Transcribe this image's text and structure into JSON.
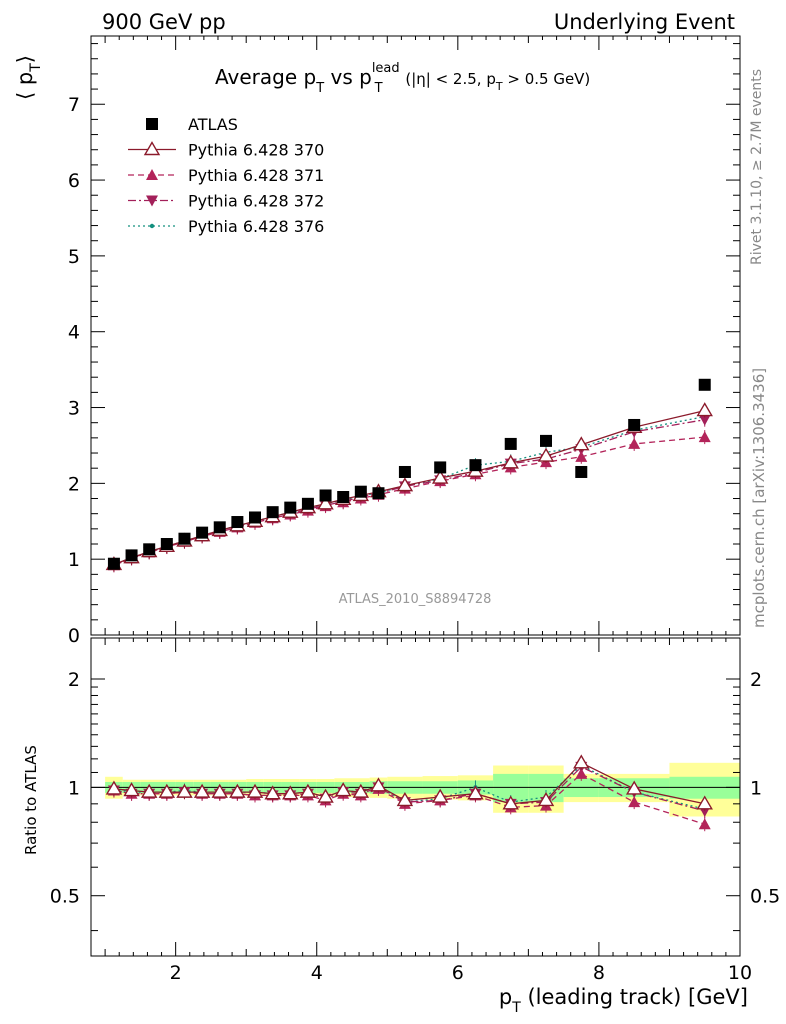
{
  "header": {
    "left": "900 GeV pp",
    "right": "Underlying Event"
  },
  "side_labels": {
    "top": "Rivet 3.1.10, ≥ 2.7M events",
    "bottom": "mcplots.cern.ch [arXiv:1306.3436]"
  },
  "chart_data": [
    {
      "type": "scatter",
      "panel": "main",
      "title_main": "Average p",
      "title_sub": "T",
      "title_mid": " vs p",
      "title_sup": "lead",
      "title_sub2": "T",
      "title_cuts": " (|η| < 2.5, p",
      "title_cuts_sub": "T",
      "title_cuts_end": " > 0.5 GeV)",
      "ylabel_left": "⟨ p",
      "ylabel_sub": "T",
      "ylabel_right": "⟩",
      "analysis_tag": "ATLAS_2010_S8894728",
      "xlim": [
        0.8,
        10.0
      ],
      "ylim": [
        0,
        7.9
      ],
      "yticks": [
        0,
        1,
        2,
        3,
        4,
        5,
        6,
        7
      ],
      "x": [
        1.125,
        1.375,
        1.625,
        1.875,
        2.125,
        2.375,
        2.625,
        2.875,
        3.125,
        3.375,
        3.625,
        3.875,
        4.125,
        4.375,
        4.625,
        4.875,
        5.25,
        5.75,
        6.25,
        6.75,
        7.25,
        7.75,
        8.5,
        9.5
      ],
      "series": [
        {
          "name": "ATLAS",
          "color": "#000000",
          "marker": "square",
          "line": "none",
          "values": [
            0.94,
            1.05,
            1.13,
            1.2,
            1.27,
            1.35,
            1.42,
            1.49,
            1.55,
            1.62,
            1.68,
            1.73,
            1.84,
            1.82,
            1.89,
            1.87,
            2.15,
            2.21,
            2.24,
            2.52,
            2.56,
            2.15,
            2.77,
            3.3
          ]
        },
        {
          "name": "Pythia 6.428 370",
          "color": "#8b1a2b",
          "marker": "triangle-open",
          "line": "solid",
          "values": [
            0.93,
            1.02,
            1.1,
            1.17,
            1.24,
            1.31,
            1.38,
            1.44,
            1.5,
            1.56,
            1.62,
            1.68,
            1.73,
            1.79,
            1.84,
            1.89,
            1.97,
            2.07,
            2.16,
            2.27,
            2.36,
            2.51,
            2.74,
            2.96
          ]
        },
        {
          "name": "Pythia 6.428 371",
          "color": "#b3245a",
          "marker": "triangle-up",
          "line": "dashed",
          "values": [
            0.92,
            1.01,
            1.09,
            1.16,
            1.23,
            1.3,
            1.36,
            1.42,
            1.48,
            1.54,
            1.59,
            1.64,
            1.7,
            1.75,
            1.8,
            1.85,
            1.93,
            2.03,
            2.12,
            2.21,
            2.28,
            2.35,
            2.52,
            2.61
          ]
        },
        {
          "name": "Pythia 6.428 372",
          "color": "#a3205a",
          "marker": "triangle-down",
          "line": "dashdot",
          "values": [
            0.92,
            1.01,
            1.09,
            1.16,
            1.23,
            1.3,
            1.36,
            1.42,
            1.48,
            1.54,
            1.6,
            1.66,
            1.71,
            1.76,
            1.82,
            1.87,
            1.96,
            2.04,
            2.14,
            2.26,
            2.32,
            2.45,
            2.68,
            2.84
          ]
        },
        {
          "name": "Pythia 6.428 376",
          "color": "#14907f",
          "marker": "dot",
          "line": "dotted",
          "values": [
            0.93,
            1.02,
            1.1,
            1.17,
            1.24,
            1.31,
            1.38,
            1.44,
            1.5,
            1.56,
            1.62,
            1.67,
            1.73,
            1.78,
            1.83,
            1.88,
            1.96,
            2.06,
            2.24,
            2.29,
            2.41,
            2.48,
            2.7,
            2.88
          ]
        }
      ],
      "legend_position": "top-left"
    },
    {
      "type": "scatter",
      "panel": "ratio",
      "ylabel": "Ratio to ATLAS",
      "xlabel": "p",
      "xlabel_sub": "T",
      "xlabel_rest": " (leading track) [GeV]",
      "xlim": [
        0.8,
        10.0
      ],
      "ylim": [
        0.34,
        2.6
      ],
      "ytick_labels": [
        "0.5",
        "1",
        "2"
      ],
      "ytick_values": [
        0.5,
        1,
        2
      ],
      "xtick_labels": [
        "2",
        "4",
        "6",
        "8",
        "10"
      ],
      "xtick_values": [
        2,
        4,
        6,
        8,
        10
      ],
      "bins": [
        [
          1.0,
          1.25
        ],
        [
          1.25,
          1.5
        ],
        [
          1.5,
          1.75
        ],
        [
          1.75,
          2.0
        ],
        [
          2.0,
          2.25
        ],
        [
          2.25,
          2.5
        ],
        [
          2.5,
          2.75
        ],
        [
          2.75,
          3.0
        ],
        [
          3.0,
          3.25
        ],
        [
          3.25,
          3.5
        ],
        [
          3.5,
          3.75
        ],
        [
          3.75,
          4.0
        ],
        [
          4.0,
          4.25
        ],
        [
          4.25,
          4.5
        ],
        [
          4.5,
          4.75
        ],
        [
          4.75,
          5.0
        ],
        [
          5.0,
          5.5
        ],
        [
          5.5,
          6.0
        ],
        [
          6.0,
          6.5
        ],
        [
          6.5,
          7.0
        ],
        [
          7.0,
          7.5
        ],
        [
          7.5,
          8.0
        ],
        [
          8.0,
          9.0
        ],
        [
          9.0,
          10.0
        ]
      ],
      "band_green": [
        0.035,
        0.035,
        0.035,
        0.035,
        0.035,
        0.035,
        0.035,
        0.035,
        0.035,
        0.035,
        0.035,
        0.035,
        0.035,
        0.035,
        0.035,
        0.04,
        0.04,
        0.04,
        0.045,
        0.09,
        0.09,
        0.06,
        0.06,
        0.07
      ],
      "band_yellow": [
        0.07,
        0.05,
        0.05,
        0.05,
        0.05,
        0.05,
        0.05,
        0.05,
        0.055,
        0.055,
        0.055,
        0.055,
        0.055,
        0.06,
        0.06,
        0.065,
        0.07,
        0.075,
        0.08,
        0.15,
        0.15,
        0.09,
        0.09,
        0.17
      ],
      "series": [
        {
          "name": "Pythia 6.428 370",
          "values": [
            0.99,
            0.98,
            0.97,
            0.97,
            0.97,
            0.97,
            0.97,
            0.97,
            0.97,
            0.96,
            0.96,
            0.97,
            0.94,
            0.98,
            0.97,
            1.01,
            0.92,
            0.94,
            0.96,
            0.9,
            0.92,
            1.17,
            0.99,
            0.9
          ]
        },
        {
          "name": "Pythia 6.428 371",
          "values": [
            0.98,
            0.96,
            0.96,
            0.96,
            0.97,
            0.96,
            0.96,
            0.96,
            0.95,
            0.95,
            0.95,
            0.95,
            0.92,
            0.96,
            0.95,
            0.99,
            0.9,
            0.92,
            0.95,
            0.88,
            0.89,
            1.09,
            0.91,
            0.79
          ]
        },
        {
          "name": "Pythia 6.428 372",
          "values": [
            0.98,
            0.96,
            0.96,
            0.96,
            0.97,
            0.96,
            0.96,
            0.96,
            0.95,
            0.95,
            0.95,
            0.96,
            0.93,
            0.97,
            0.96,
            1.0,
            0.91,
            0.92,
            0.96,
            0.9,
            0.91,
            1.14,
            0.97,
            0.86
          ]
        },
        {
          "name": "Pythia 6.428 376",
          "values": [
            0.99,
            0.97,
            0.97,
            0.97,
            0.98,
            0.97,
            0.97,
            0.97,
            0.97,
            0.96,
            0.96,
            0.97,
            0.94,
            0.98,
            0.97,
            1.01,
            0.91,
            0.93,
            1.0,
            0.91,
            0.94,
            1.15,
            0.97,
            0.87
          ]
        }
      ]
    }
  ]
}
